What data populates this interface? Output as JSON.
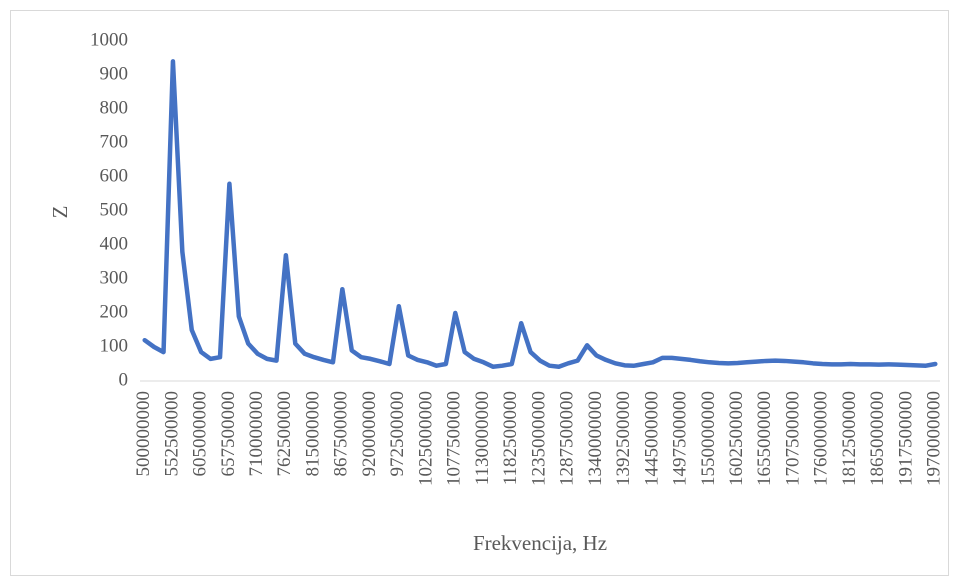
{
  "chart_data": {
    "type": "line",
    "x_label": "Frekvencija, Hz",
    "y_label": "Z",
    "categories": [
      "500000000",
      null,
      null,
      "552500000",
      null,
      null,
      "605000000",
      null,
      null,
      "657500000",
      null,
      null,
      "710000000",
      null,
      null,
      "762500000",
      null,
      null,
      "815000000",
      null,
      null,
      "867500000",
      null,
      null,
      "920000000",
      null,
      null,
      "972500000",
      null,
      null,
      "1025000000",
      null,
      null,
      "1077500000",
      null,
      null,
      "1130000000",
      null,
      null,
      "1182500000",
      null,
      null,
      "1235000000",
      null,
      null,
      "1287500000",
      null,
      null,
      "1340000000",
      null,
      null,
      "1392500000",
      null,
      null,
      "1445000000",
      null,
      null,
      "1497500000",
      null,
      null,
      "1550000000",
      null,
      null,
      "1602500000",
      null,
      null,
      "1655000000",
      null,
      null,
      "1707500000",
      null,
      null,
      "1760000000",
      null,
      null,
      "1812500000",
      null,
      null,
      "1865000000",
      null,
      null,
      "1917500000",
      null,
      null,
      "1970000000"
    ],
    "values": [
      120,
      100,
      85,
      940,
      380,
      150,
      85,
      65,
      70,
      580,
      190,
      110,
      80,
      65,
      60,
      370,
      110,
      80,
      70,
      62,
      55,
      270,
      90,
      70,
      65,
      58,
      50,
      220,
      75,
      62,
      55,
      45,
      50,
      200,
      85,
      65,
      55,
      42,
      45,
      50,
      170,
      85,
      60,
      45,
      42,
      52,
      60,
      105,
      75,
      62,
      52,
      46,
      45,
      50,
      55,
      68,
      68,
      65,
      62,
      58,
      55,
      53,
      52,
      53,
      55,
      57,
      59,
      60,
      59,
      57,
      55,
      52,
      50,
      49,
      49,
      50,
      49,
      49,
      48,
      49,
      48,
      47,
      46,
      45,
      50
    ],
    "color": "#4472c4",
    "ylim": [
      0,
      1000
    ],
    "yticks": [
      0,
      100,
      200,
      300,
      400,
      500,
      600,
      700,
      800,
      900,
      1000
    ],
    "grid": false
  }
}
